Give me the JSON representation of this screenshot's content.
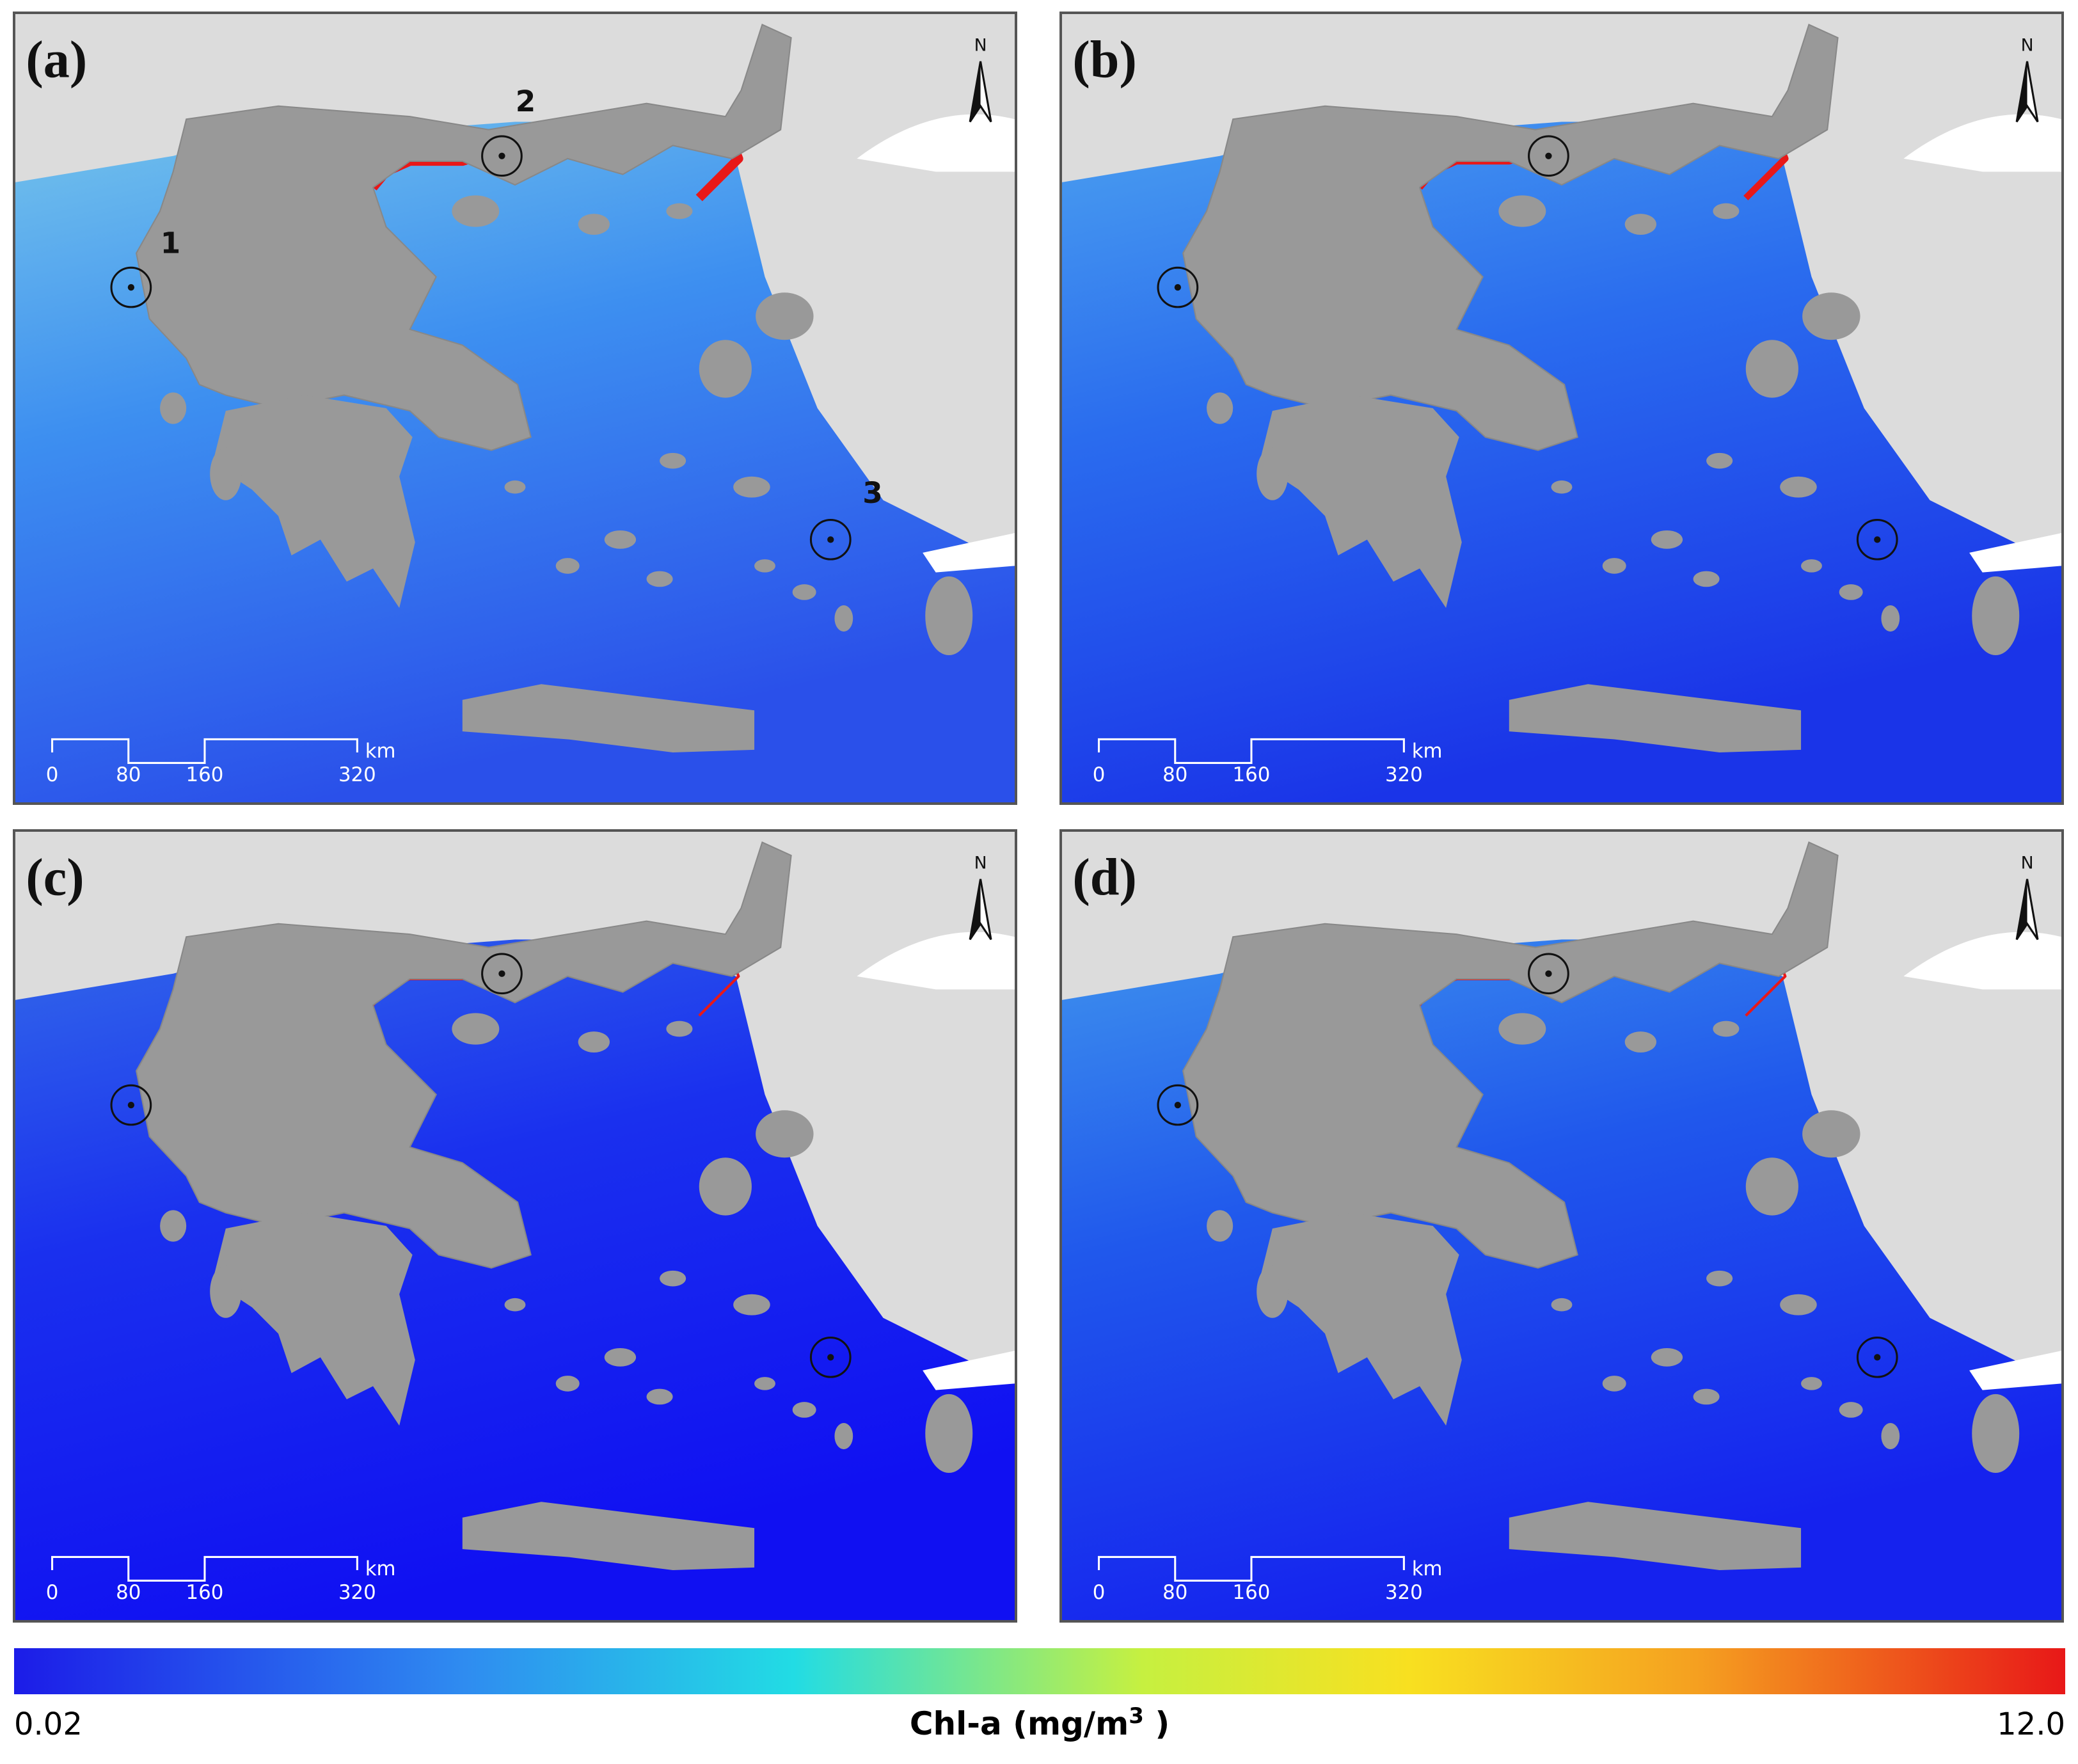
{
  "panels": [
    {
      "label": "(a)",
      "stations": [
        "1",
        "2",
        "3"
      ]
    },
    {
      "label": "(b)"
    },
    {
      "label": "(c)"
    },
    {
      "label": "(d)"
    }
  ],
  "scale_bar": {
    "ticks": [
      "0",
      "80",
      "160",
      "320"
    ],
    "unit": "km"
  },
  "north": "N",
  "colorbar": {
    "min": "0.02",
    "max": "12.0",
    "title_prefix": "Chl-a (mg/m",
    "title_sup": "3",
    "title_suffix": " )"
  }
}
